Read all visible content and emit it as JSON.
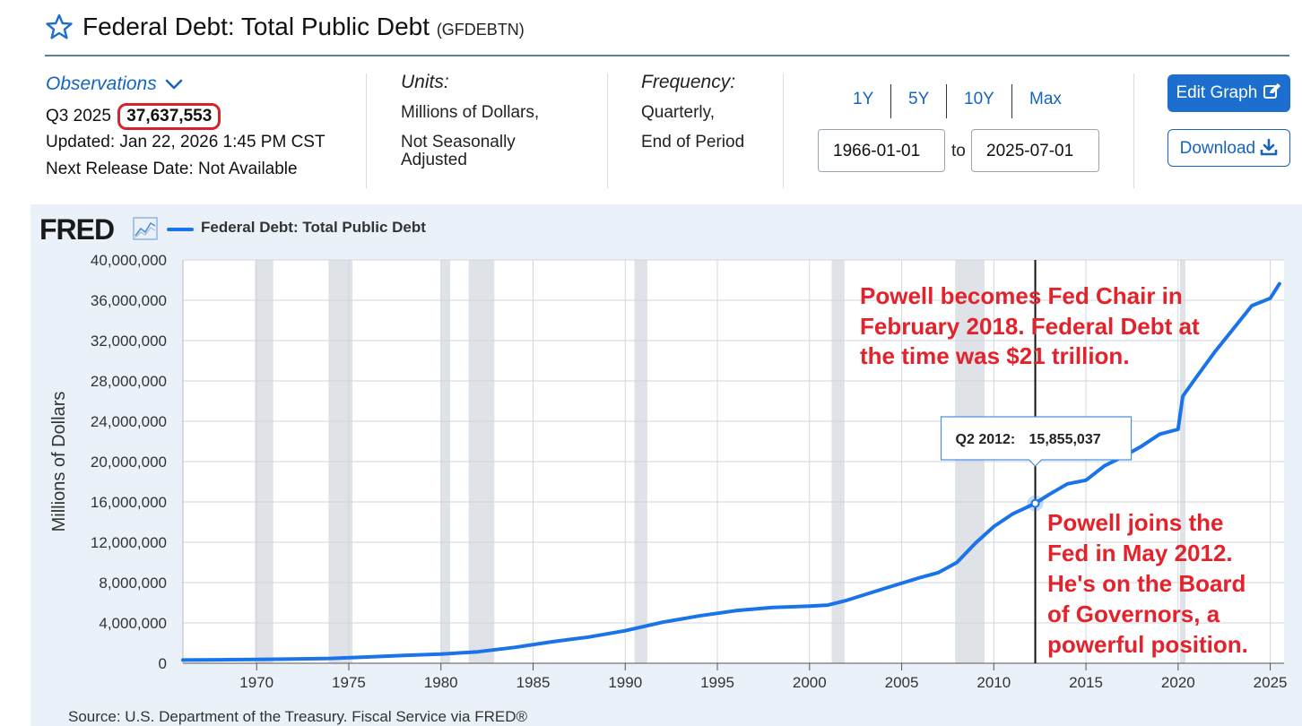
{
  "header": {
    "title": "Federal Debt: Total Public Debt",
    "series_code": "(GFDEBTN)"
  },
  "info": {
    "observations_label": "Observations",
    "obs_period": "Q3 2025",
    "obs_value": "37,637,553",
    "updated": "Updated: Jan 22, 2026 1:45 PM CST",
    "next_release": "Next Release Date: Not Available",
    "units_heading": "Units:",
    "units_line1": "Millions of Dollars,",
    "units_line2": "Not Seasonally",
    "units_line3": "Adjusted",
    "frequency_heading": "Frequency:",
    "frequency_line1": "Quarterly,",
    "frequency_line2": "End of Period"
  },
  "controls": {
    "range_1y": "1Y",
    "range_5y": "5Y",
    "range_10y": "10Y",
    "range_max": "Max",
    "start_date": "1966-01-01",
    "to_label": "to",
    "end_date": "2025-07-01",
    "edit_graph": "Edit Graph",
    "download": "Download"
  },
  "chart_panel": {
    "logo": "FRED",
    "legend_label": "Federal Debt: Total Public Debt",
    "source": "Source: U.S. Department of the Treasury. Fiscal Service via FRED®"
  },
  "colors": {
    "accent": "#1c6fcf",
    "series": "#1a73e8",
    "annotation": "#e4222b",
    "recession": "#dfe3e8"
  },
  "chart_data": {
    "type": "line",
    "title": "Federal Debt: Total Public Debt",
    "xlabel": "",
    "ylabel": "Millions of Dollars",
    "xlim": [
      1966,
      2025.75
    ],
    "ylim": [
      0,
      40000000
    ],
    "yticks": [
      0,
      4000000,
      8000000,
      12000000,
      16000000,
      20000000,
      24000000,
      28000000,
      32000000,
      36000000,
      40000000
    ],
    "ytick_labels": [
      "0",
      "4,000,000",
      "8,000,000",
      "12,000,000",
      "16,000,000",
      "20,000,000",
      "24,000,000",
      "28,000,000",
      "32,000,000",
      "36,000,000",
      "40,000,000"
    ],
    "xticks": [
      1970,
      1975,
      1980,
      1985,
      1990,
      1995,
      2000,
      2005,
      2010,
      2015,
      2020,
      2025
    ],
    "xtick_labels": [
      "1970",
      "1975",
      "1980",
      "1985",
      "1990",
      "1995",
      "2000",
      "2005",
      "2010",
      "2015",
      "2020",
      "2025"
    ],
    "recessions": [
      [
        1969.9,
        1970.9
      ],
      [
        1973.9,
        1975.2
      ],
      [
        1980.0,
        1980.5
      ],
      [
        1981.5,
        1982.9
      ],
      [
        1990.5,
        1991.2
      ],
      [
        2001.2,
        2001.9
      ],
      [
        2007.9,
        2009.5
      ],
      [
        2020.1,
        2020.4
      ]
    ],
    "vertical_marker_x": 2012.25,
    "series": [
      {
        "name": "Federal Debt: Total Public Debt",
        "x": [
          1966,
          1968,
          1970,
          1972,
          1974,
          1976,
          1978,
          1980,
          1982,
          1984,
          1986,
          1988,
          1990,
          1992,
          1994,
          1996,
          1998,
          2000,
          2001,
          2002,
          2004,
          2006,
          2007,
          2008,
          2009,
          2010,
          2011,
          2012.25,
          2013,
          2014,
          2015,
          2016,
          2017,
          2018,
          2019,
          2020,
          2020.25,
          2021,
          2022,
          2023,
          2024,
          2025,
          2025.5
        ],
        "y": [
          320000,
          350000,
          380000,
          430000,
          480000,
          620000,
          780000,
          910000,
          1140000,
          1570000,
          2120000,
          2600000,
          3230000,
          4060000,
          4690000,
          5220000,
          5530000,
          5670000,
          5770000,
          6230000,
          7380000,
          8500000,
          9000000,
          10000000,
          11900000,
          13560000,
          14790000,
          15855037,
          16740000,
          17800000,
          18150000,
          19570000,
          20490000,
          21500000,
          22720000,
          23200000,
          26480000,
          28400000,
          30900000,
          33170000,
          35460000,
          36200000,
          37637553
        ]
      }
    ],
    "tooltip": {
      "period": "Q2 2012:",
      "value": "15,855,037"
    },
    "annotations": [
      "Powell becomes Fed Chair in",
      "February 2018. Federal Debt at",
      "the time was $21 trillion.",
      "Powell joins the",
      "Fed in May 2012.",
      "He's on the Board",
      "of Governors, a",
      "powerful position."
    ]
  }
}
